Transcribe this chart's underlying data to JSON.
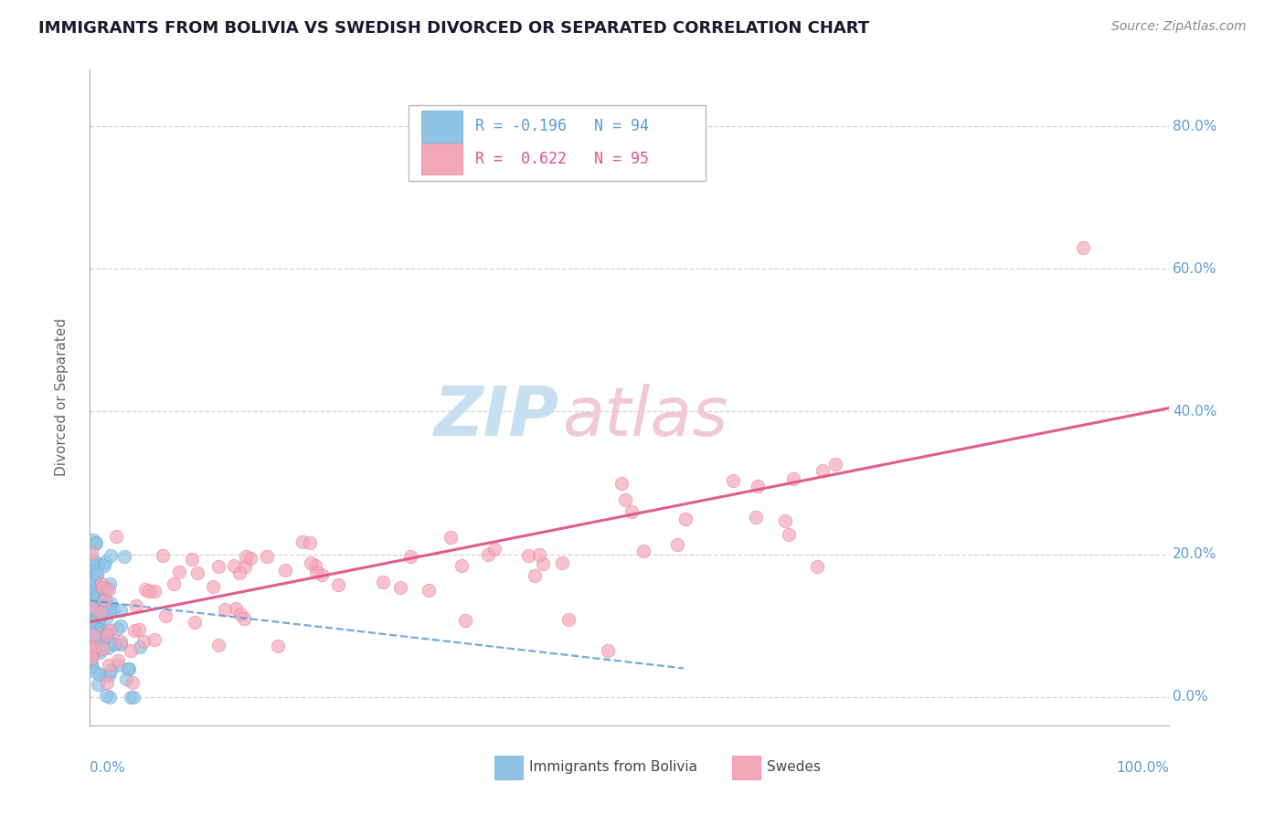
{
  "title": "IMMIGRANTS FROM BOLIVIA VS SWEDISH DIVORCED OR SEPARATED CORRELATION CHART",
  "source": "Source: ZipAtlas.com",
  "ylabel": "Divorced or Separated",
  "ytick_labels": [
    "0.0%",
    "20.0%",
    "40.0%",
    "60.0%",
    "80.0%"
  ],
  "ytick_values": [
    0.0,
    0.2,
    0.4,
    0.6,
    0.8
  ],
  "xlim": [
    0.0,
    1.0
  ],
  "ylim": [
    -0.04,
    0.88
  ],
  "color_blue": "#90c4e4",
  "color_blue_edge": "#6aadd5",
  "color_pink": "#f4a7b9",
  "color_pink_edge": "#e87fa0",
  "color_blue_line": "#5b9bd5",
  "color_pink_line": "#e05580",
  "legend_r1": "R = -0.196",
  "legend_n1": "N = 94",
  "legend_r2": "R =  0.622",
  "legend_n2": "N = 95",
  "pink_line_x0": 0.0,
  "pink_line_y0": 0.105,
  "pink_line_x1": 1.0,
  "pink_line_y1": 0.405,
  "blue_line_x0": 0.0,
  "blue_line_y0": 0.135,
  "blue_line_x1": 0.55,
  "blue_line_y1": 0.04
}
